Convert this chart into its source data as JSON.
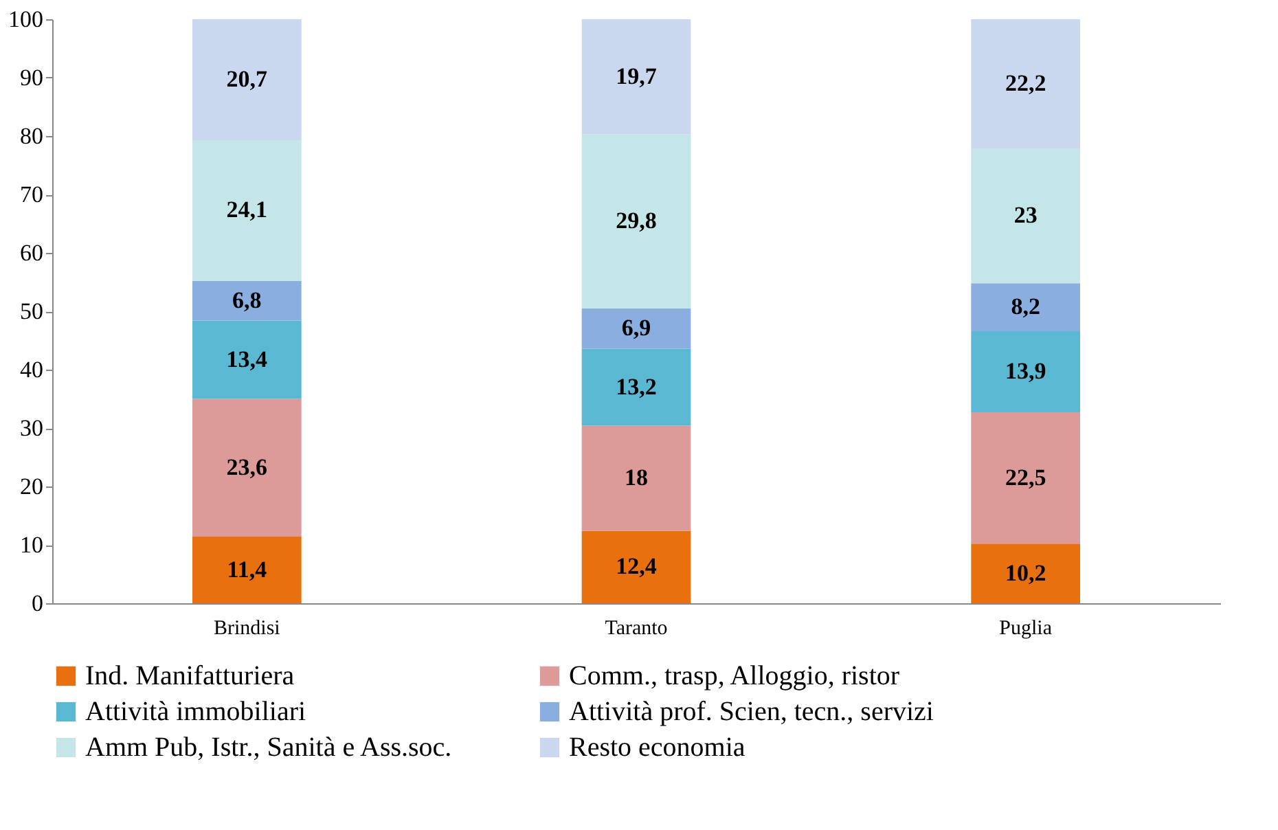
{
  "chart_data": {
    "type": "bar",
    "stacked": true,
    "categories": [
      "Brindisi",
      "Taranto",
      "Puglia"
    ],
    "series": [
      {
        "name": "Ind. Manifatturiera",
        "color": "#e8700f",
        "values": [
          11.4,
          12.4,
          10.2
        ],
        "value_labels": [
          "11,4",
          "12,4",
          "10,2"
        ]
      },
      {
        "name": "Comm., trasp, Alloggio, ristor",
        "color": "#dc9a98",
        "values": [
          23.6,
          18,
          22.5
        ],
        "value_labels": [
          "23,6",
          "18",
          "22,5"
        ]
      },
      {
        "name": "Attività immobiliari",
        "color": "#5ab8d2",
        "values": [
          13.4,
          13.2,
          13.9
        ],
        "value_labels": [
          "13,4",
          "13,2",
          "13,9"
        ]
      },
      {
        "name": "Attività prof. Scien, tecn., servizi",
        "color": "#8aaee0",
        "values": [
          6.8,
          6.9,
          8.2
        ],
        "value_labels": [
          "6,8",
          "6,9",
          "8,2"
        ]
      },
      {
        "name": "Amm Pub, Istr., Sanità e Ass.soc.",
        "color": "#c4e6e8",
        "values": [
          24.1,
          29.8,
          23
        ],
        "value_labels": [
          "24,1",
          "29,8",
          "23"
        ]
      },
      {
        "name": "Resto economia",
        "color": "#c9d8ee",
        "values": [
          20.7,
          19.7,
          22.2
        ],
        "value_labels": [
          "20,7",
          "19,7",
          "22,2"
        ]
      }
    ],
    "ylim": [
      0,
      100
    ],
    "yticks": [
      0,
      10,
      20,
      30,
      40,
      50,
      60,
      70,
      80,
      90,
      100
    ],
    "grid": false,
    "legend": "bottom"
  }
}
